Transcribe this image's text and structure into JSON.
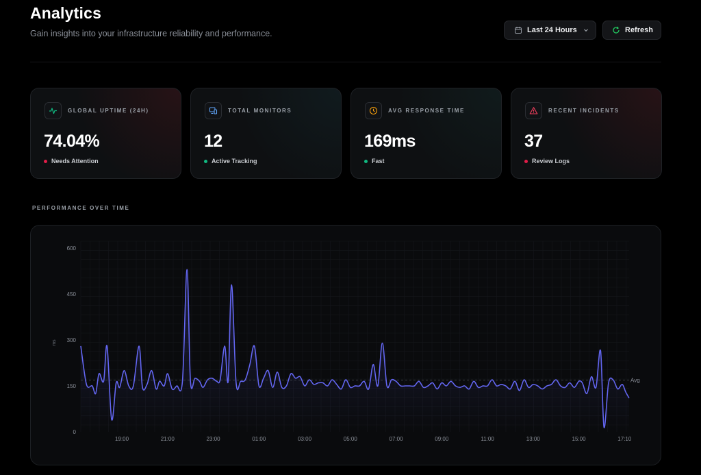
{
  "header": {
    "title": "Analytics",
    "subtitle": "Gain insights into your infrastructure reliability and performance."
  },
  "controls": {
    "range_label": "Last 24 Hours",
    "refresh_label": "Refresh"
  },
  "stats": [
    {
      "label": "GLOBAL UPTIME (24H)",
      "value": "74.04%",
      "status": "Needs Attention",
      "status_color": "#e11d48",
      "icon": "activity-icon",
      "accent": "#10b981"
    },
    {
      "label": "TOTAL MONITORS",
      "value": "12",
      "status": "Active Tracking",
      "status_color": "#10b981",
      "icon": "monitor-icon",
      "accent": "#60a5fa"
    },
    {
      "label": "AVG RESPONSE TIME",
      "value": "169ms",
      "status": "Fast",
      "status_color": "#10b981",
      "icon": "clock-icon",
      "accent": "#f59e0b"
    },
    {
      "label": "RECENT INCIDENTS",
      "value": "37",
      "status": "Review Logs",
      "status_color": "#e11d48",
      "icon": "alert-triangle-icon",
      "accent": "#f43f5e"
    }
  ],
  "performance": {
    "section_title": "PERFORMANCE OVER TIME",
    "avg_label": "Avg"
  },
  "chart_data": {
    "type": "area",
    "ylabel": "ms",
    "ylim": [
      0,
      600
    ],
    "yticks": [
      0,
      150,
      300,
      450,
      600
    ],
    "xlim": [
      17.2,
      41.2
    ],
    "xticks": [
      {
        "t": 19.0,
        "label": "19:00"
      },
      {
        "t": 21.0,
        "label": "21:00"
      },
      {
        "t": 23.0,
        "label": "23:00"
      },
      {
        "t": 25.0,
        "label": "01:00"
      },
      {
        "t": 27.0,
        "label": "03:00"
      },
      {
        "t": 29.0,
        "label": "05:00"
      },
      {
        "t": 31.0,
        "label": "07:00"
      },
      {
        "t": 33.0,
        "label": "09:00"
      },
      {
        "t": 35.0,
        "label": "11:00"
      },
      {
        "t": 37.0,
        "label": "13:00"
      },
      {
        "t": 39.0,
        "label": "15:00"
      },
      {
        "t": 41.0,
        "label": "17:10"
      }
    ],
    "average": 169,
    "grid": true,
    "line_color": "#6366f1",
    "series": [
      {
        "x": [
          17.2,
          17.45,
          17.7,
          17.85,
          18.0,
          18.2,
          18.35,
          18.55,
          18.75,
          18.9,
          19.1,
          19.3,
          19.5,
          19.75,
          19.9,
          20.1,
          20.3,
          20.5,
          20.65,
          20.85,
          21.0,
          21.2,
          21.4,
          21.65,
          21.85,
          22.0,
          22.2,
          22.4,
          22.55,
          22.75,
          22.95,
          23.15,
          23.3,
          23.5,
          23.65,
          23.8,
          24.0,
          24.2,
          24.4,
          24.6,
          24.8,
          25.0,
          25.2,
          25.4,
          25.6,
          25.8,
          26.0,
          26.2,
          26.4,
          26.6,
          26.8,
          27.0,
          27.2,
          27.4,
          27.6,
          27.8,
          28.0,
          28.2,
          28.4,
          28.6,
          28.8,
          29.0,
          29.2,
          29.4,
          29.6,
          29.8,
          30.0,
          30.2,
          30.4,
          30.6,
          30.8,
          31.0,
          31.2,
          31.4,
          31.6,
          31.8,
          32.0,
          32.2,
          32.4,
          32.6,
          32.8,
          33.0,
          33.2,
          33.4,
          33.6,
          33.8,
          34.0,
          34.2,
          34.4,
          34.6,
          34.8,
          35.0,
          35.2,
          35.4,
          35.6,
          35.8,
          36.0,
          36.2,
          36.4,
          36.6,
          36.8,
          37.0,
          37.2,
          37.4,
          37.6,
          37.8,
          38.0,
          38.2,
          38.4,
          38.6,
          38.8,
          39.0,
          39.15,
          39.35,
          39.55,
          39.75,
          39.95,
          40.1,
          40.3,
          40.5,
          40.7,
          40.9,
          41.05,
          41.2
        ],
        "y": [
          280,
          155,
          150,
          125,
          190,
          165,
          280,
          40,
          160,
          145,
          200,
          150,
          150,
          280,
          145,
          155,
          200,
          140,
          165,
          150,
          190,
          140,
          150,
          165,
          530,
          165,
          175,
          165,
          145,
          170,
          175,
          165,
          170,
          280,
          165,
          480,
          160,
          165,
          170,
          220,
          280,
          150,
          175,
          200,
          145,
          195,
          145,
          150,
          190,
          175,
          180,
          150,
          170,
          155,
          160,
          160,
          150,
          170,
          155,
          140,
          170,
          145,
          150,
          150,
          165,
          140,
          220,
          150,
          290,
          150,
          170,
          165,
          150,
          150,
          150,
          150,
          165,
          145,
          150,
          160,
          140,
          160,
          150,
          165,
          150,
          145,
          150,
          140,
          165,
          145,
          150,
          150,
          170,
          150,
          155,
          150,
          140,
          165,
          135,
          170,
          145,
          155,
          150,
          140,
          150,
          155,
          170,
          150,
          145,
          160,
          145,
          165,
          160,
          125,
          180,
          145,
          265,
          15,
          160,
          170,
          140,
          155,
          130,
          110
        ]
      }
    ]
  }
}
